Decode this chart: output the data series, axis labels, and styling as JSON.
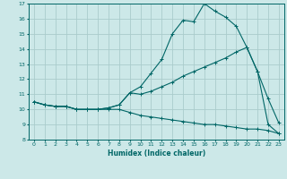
{
  "xlabel": "Humidex (Indice chaleur)",
  "xlim": [
    -0.5,
    23.5
  ],
  "ylim": [
    8,
    17
  ],
  "xticks": [
    0,
    1,
    2,
    3,
    4,
    5,
    6,
    7,
    8,
    9,
    10,
    11,
    12,
    13,
    14,
    15,
    16,
    17,
    18,
    19,
    20,
    21,
    22,
    23
  ],
  "yticks": [
    8,
    9,
    10,
    11,
    12,
    13,
    14,
    15,
    16,
    17
  ],
  "bg_color": "#cce8e8",
  "grid_color": "#aacccc",
  "line_color": "#006666",
  "curve1_x": [
    0,
    1,
    2,
    3,
    4,
    5,
    6,
    7,
    8,
    9,
    10,
    11,
    12,
    13,
    14,
    15,
    16,
    17,
    18,
    19,
    20,
    21,
    22,
    23
  ],
  "curve1_y": [
    10.5,
    10.3,
    10.2,
    10.2,
    10.0,
    10.0,
    10.0,
    10.1,
    10.3,
    11.1,
    11.5,
    12.4,
    13.3,
    15.0,
    15.9,
    15.8,
    17.0,
    16.5,
    16.1,
    15.5,
    14.1,
    12.5,
    10.7,
    9.1
  ],
  "curve2_x": [
    0,
    1,
    2,
    3,
    4,
    5,
    6,
    7,
    8,
    9,
    10,
    11,
    12,
    13,
    14,
    15,
    16,
    17,
    18,
    19,
    20,
    21,
    22,
    23
  ],
  "curve2_y": [
    10.5,
    10.3,
    10.2,
    10.2,
    10.0,
    10.0,
    10.0,
    10.1,
    10.3,
    11.1,
    11.0,
    11.2,
    11.5,
    11.8,
    12.2,
    12.5,
    12.8,
    13.1,
    13.4,
    13.8,
    14.1,
    12.5,
    9.0,
    8.4
  ],
  "curve3_x": [
    0,
    1,
    2,
    3,
    4,
    5,
    6,
    7,
    8,
    9,
    10,
    11,
    12,
    13,
    14,
    15,
    16,
    17,
    18,
    19,
    20,
    21,
    22,
    23
  ],
  "curve3_y": [
    10.5,
    10.3,
    10.2,
    10.2,
    10.0,
    10.0,
    10.0,
    10.0,
    10.0,
    9.8,
    9.6,
    9.5,
    9.4,
    9.3,
    9.2,
    9.1,
    9.0,
    9.0,
    8.9,
    8.8,
    8.7,
    8.7,
    8.6,
    8.4
  ]
}
